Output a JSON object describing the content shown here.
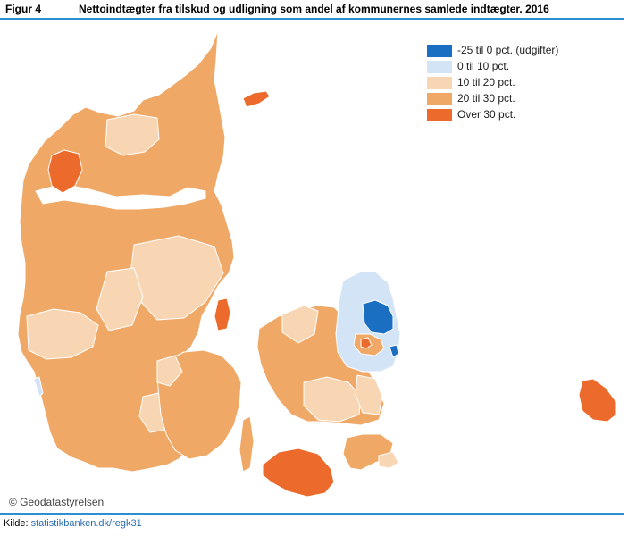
{
  "figure": {
    "label": "Figur 4",
    "title": "Nettoindtægter fra tilskud og udligning som andel af kommunernes samlede indtægter. 2016"
  },
  "legend": [
    {
      "label": "-25 til 0 pct. (udgifter)",
      "color": "#1b6fc2"
    },
    {
      "label": "0 til 10 pct.",
      "color": "#d3e4f6"
    },
    {
      "label": "10 til 20 pct.",
      "color": "#f9d6b3"
    },
    {
      "label": "20 til 30 pct.",
      "color": "#f0a867"
    },
    {
      "label": "Over 30 pct.",
      "color": "#ec6b2c"
    }
  ],
  "copyright": "© Geodatastyrelsen",
  "source": {
    "prefix": "Kilde: ",
    "link_text": "statistikbanken.dk/regk31"
  },
  "colors": {
    "rule": "#2b8fd1",
    "border": "#ffffff"
  }
}
